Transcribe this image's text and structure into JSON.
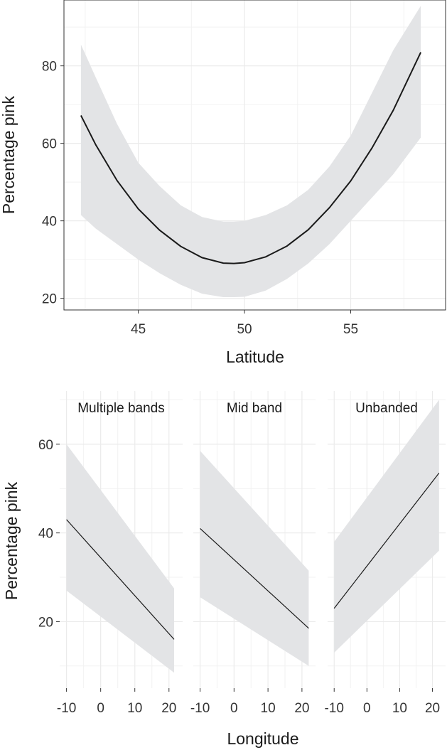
{
  "chart_data": [
    {
      "type": "line",
      "xlabel": "Latitude",
      "ylabel": "Percentage pink",
      "xlim": [
        41.5,
        59.5
      ],
      "ylim": [
        17,
        97
      ],
      "xticks": [
        45,
        50,
        55
      ],
      "yticks": [
        20,
        40,
        60,
        80
      ],
      "grid": true,
      "panel_border": true,
      "band_color": "#e3e4e6",
      "line_color": "#1a1a1a",
      "series": [
        {
          "x": [
            42.3,
            43,
            44,
            45,
            46,
            47,
            48,
            49,
            49.5,
            50,
            51,
            52,
            53,
            54,
            55,
            56,
            57,
            58.3
          ],
          "y": [
            67.2,
            59.6,
            50.4,
            43.1,
            37.6,
            33.4,
            30.5,
            29.1,
            29.0,
            29.2,
            30.7,
            33.5,
            37.7,
            43.4,
            50.3,
            58.8,
            68.5,
            83.5
          ],
          "lower": [
            41.5,
            38,
            34,
            30,
            26.5,
            23.5,
            21.2,
            20.3,
            20.3,
            20.4,
            22,
            25,
            29,
            34,
            40,
            46,
            52,
            61.5
          ],
          "upper": [
            85.5,
            77,
            65,
            55,
            49,
            44,
            41,
            39.8,
            39.8,
            40,
            41.5,
            44,
            48,
            54,
            62,
            73,
            84,
            95.5
          ]
        }
      ]
    },
    {
      "type": "line",
      "xlabel": "Longitude",
      "ylabel": "Percentage pink",
      "xlim": [
        -12,
        24
      ],
      "ylim": [
        5,
        72
      ],
      "xticks": [
        -10,
        0,
        10,
        20
      ],
      "xtick_labels": [
        "-10",
        "0",
        "10",
        "20"
      ],
      "yticks": [
        20,
        40,
        60
      ],
      "grid": true,
      "panel_border": false,
      "band_color": "#e3e4e6",
      "line_color": "#1a1a1a",
      "facets": [
        {
          "strip": "Multiple bands",
          "x": [
            -10,
            21.5
          ],
          "y": [
            43,
            16
          ],
          "lower": [
            27,
            8.5
          ],
          "upper": [
            60,
            27.5
          ]
        },
        {
          "strip": "Mid band",
          "x": [
            -10,
            22
          ],
          "y": [
            41,
            18.5
          ],
          "lower": [
            25.5,
            10
          ],
          "upper": [
            58.5,
            31.5
          ]
        },
        {
          "strip": "Unbanded",
          "x": [
            -10,
            22
          ],
          "y": [
            23,
            53.5
          ],
          "lower": [
            13,
            36
          ],
          "upper": [
            38,
            70
          ]
        }
      ]
    }
  ]
}
